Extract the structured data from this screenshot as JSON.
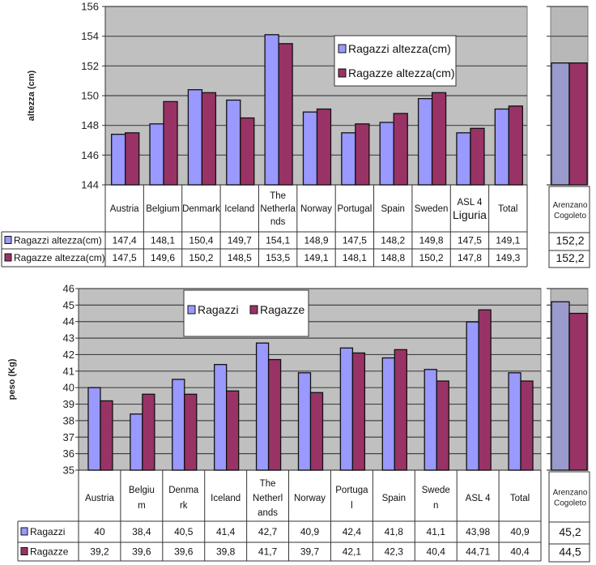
{
  "colors": {
    "ragazzi": "#9999ff",
    "ragazzi_panel": "#9a9acc",
    "ragazze": "#993366",
    "plot_bg": "#c0c0c0",
    "grid": "#444444"
  },
  "chart_data": [
    {
      "type": "bar",
      "ylabel": "altezza (cm)",
      "ylim": [
        144,
        156
      ],
      "yticks": [
        "144",
        "146",
        "148",
        "150",
        "152",
        "154",
        "156"
      ],
      "categories": [
        [
          "Austria"
        ],
        [
          "Belgium"
        ],
        [
          "Denmark"
        ],
        [
          "Iceland"
        ],
        [
          "The",
          "Netherla",
          "nds"
        ],
        [
          "Norway"
        ],
        [
          "Portugal"
        ],
        [
          "Spain"
        ],
        [
          "Sweden"
        ],
        [
          "ASL 4",
          "Liguria"
        ],
        [
          "Total"
        ]
      ],
      "series": [
        {
          "name": "Ragazzi altezza(cm)",
          "values": [
            147.4,
            148.1,
            150.4,
            149.7,
            154.1,
            148.9,
            147.5,
            148.2,
            149.8,
            147.5,
            149.1
          ],
          "labels": [
            "147,4",
            "148,1",
            "150,4",
            "149,7",
            "154,1",
            "148,9",
            "147,5",
            "148,2",
            "149,8",
            "147,5",
            "149,1"
          ]
        },
        {
          "name": "Ragazze altezza(cm)",
          "values": [
            147.5,
            149.6,
            150.2,
            148.5,
            153.5,
            149.1,
            148.1,
            148.8,
            150.2,
            147.8,
            149.3
          ],
          "labels": [
            "147,5",
            "149,6",
            "150,2",
            "148,5",
            "153,5",
            "149,1",
            "148,1",
            "148,8",
            "150,2",
            "147,8",
            "149,3"
          ]
        }
      ],
      "side_panel": {
        "category": [
          "Arenzano",
          "Cogoleto"
        ],
        "values": [
          152.2,
          152.2
        ],
        "labels": [
          "152,2",
          "152,2"
        ]
      },
      "legend": "top-center"
    },
    {
      "type": "bar",
      "ylabel": "peso (Kg)",
      "ylim": [
        35,
        46
      ],
      "yticks": [
        "35",
        "36",
        "37",
        "38",
        "39",
        "40",
        "41",
        "42",
        "43",
        "44",
        "45",
        "46"
      ],
      "categories": [
        [
          "Austria"
        ],
        [
          "Belgiu",
          "m"
        ],
        [
          "Denma",
          "rk"
        ],
        [
          "Iceland"
        ],
        [
          "The",
          "Netherl",
          "ands"
        ],
        [
          "Norway"
        ],
        [
          "Portuga",
          "l"
        ],
        [
          "Spain"
        ],
        [
          "Swede",
          "n"
        ],
        [
          "ASL 4"
        ],
        [
          "Total"
        ]
      ],
      "series": [
        {
          "name": "Ragazzi",
          "values": [
            40,
            38.4,
            40.5,
            41.4,
            42.7,
            40.9,
            42.4,
            41.8,
            41.1,
            43.98,
            40.9
          ],
          "labels": [
            "40",
            "38,4",
            "40,5",
            "41,4",
            "42,7",
            "40,9",
            "42,4",
            "41,8",
            "41,1",
            "43,98",
            "40,9"
          ]
        },
        {
          "name": "Ragazze",
          "values": [
            39.2,
            39.6,
            39.6,
            39.8,
            41.7,
            39.7,
            42.1,
            42.3,
            40.4,
            44.71,
            40.4
          ],
          "labels": [
            "39,2",
            "39,6",
            "39,6",
            "39,8",
            "41,7",
            "39,7",
            "42,1",
            "42,3",
            "40,4",
            "44,71",
            "40,4"
          ]
        }
      ],
      "side_panel": {
        "category": [
          "Arenzano",
          "Cogoleto"
        ],
        "values": [
          45.2,
          44.5
        ],
        "labels": [
          "45,2",
          "44,5"
        ]
      },
      "legend": "top-center"
    }
  ]
}
